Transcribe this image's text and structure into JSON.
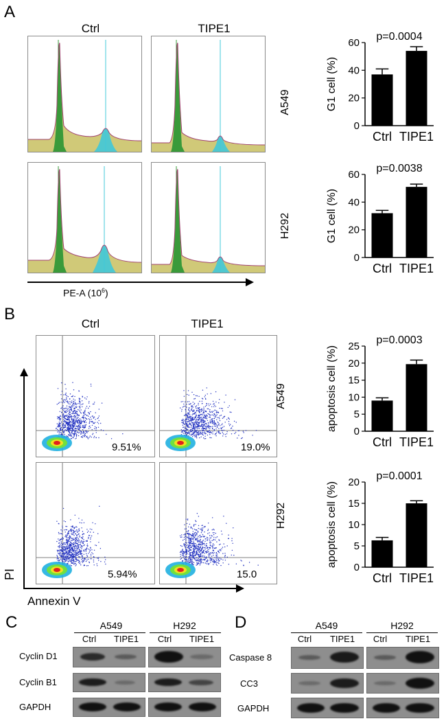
{
  "panelA": {
    "letter": "A",
    "col_ctrl": "Ctrl",
    "col_tipe1": "TIPE1",
    "x_axis_label": "PE-A (10",
    "x_axis_sup": "6",
    "x_axis_close": ")",
    "row_a549": "A549",
    "row_h292": "H292"
  },
  "panelB": {
    "letter": "B",
    "col_ctrl": "Ctrl",
    "col_tipe1": "TIPE1",
    "y_axis_label": "PI",
    "x_axis_label": "Annexin V",
    "row_a549": "A549",
    "row_h292": "H292",
    "pct_a549_ctrl": "9.51%",
    "pct_a549_tipe1": "19.0%",
    "pct_h292_ctrl": "5.94%",
    "pct_h292_tipe1": "15.0"
  },
  "panelC": {
    "letter": "C",
    "group1": "A549",
    "group2": "H292",
    "cond1": "Ctrl",
    "cond2": "TIPE1",
    "row1": "Cyclin D1",
    "row2": "Cyclin B1",
    "row3": "GAPDH"
  },
  "panelD": {
    "letter": "D",
    "group1": "A549",
    "group2": "H292",
    "cond1": "Ctrl",
    "cond2": "TIPE1",
    "row1": "Caspase 8",
    "row2": "CC3",
    "row3": "GAPDH"
  },
  "chart_data": [
    {
      "id": "g1_a549",
      "type": "bar",
      "categories": [
        "Ctrl",
        "TIPE1"
      ],
      "values": [
        37,
        54
      ],
      "errors": [
        4,
        3
      ],
      "ylabel": "G1 cell (%)",
      "ylim": [
        0,
        60
      ],
      "yticks": [
        0,
        20,
        40,
        60
      ],
      "annotation": "p=0.0004",
      "row_label": "A549"
    },
    {
      "id": "g1_h292",
      "type": "bar",
      "categories": [
        "Ctrl",
        "TIPE1"
      ],
      "values": [
        32,
        51
      ],
      "errors": [
        2,
        2
      ],
      "ylabel": "G1 cell (%)",
      "ylim": [
        0,
        60
      ],
      "yticks": [
        0,
        20,
        40,
        60
      ],
      "annotation": "p=0.0038",
      "row_label": "H292"
    },
    {
      "id": "apop_a549",
      "type": "bar",
      "categories": [
        "Ctrl",
        "TIPE1"
      ],
      "values": [
        9,
        19.7
      ],
      "errors": [
        0.8,
        1.2
      ],
      "ylabel": "apoptosis cell (%)",
      "ylim": [
        0,
        25
      ],
      "yticks": [
        0,
        5,
        10,
        15,
        20,
        25
      ],
      "annotation": "p=0.0003",
      "row_label": "A549"
    },
    {
      "id": "apop_h292",
      "type": "bar",
      "categories": [
        "Ctrl",
        "TIPE1"
      ],
      "values": [
        6.3,
        15
      ],
      "errors": [
        0.7,
        0.6
      ],
      "ylabel": "apoptosis cell (%)",
      "ylim": [
        0,
        20
      ],
      "yticks": [
        0,
        5,
        10,
        15,
        20
      ],
      "annotation": "p=0.0001",
      "row_label": "H292"
    }
  ]
}
